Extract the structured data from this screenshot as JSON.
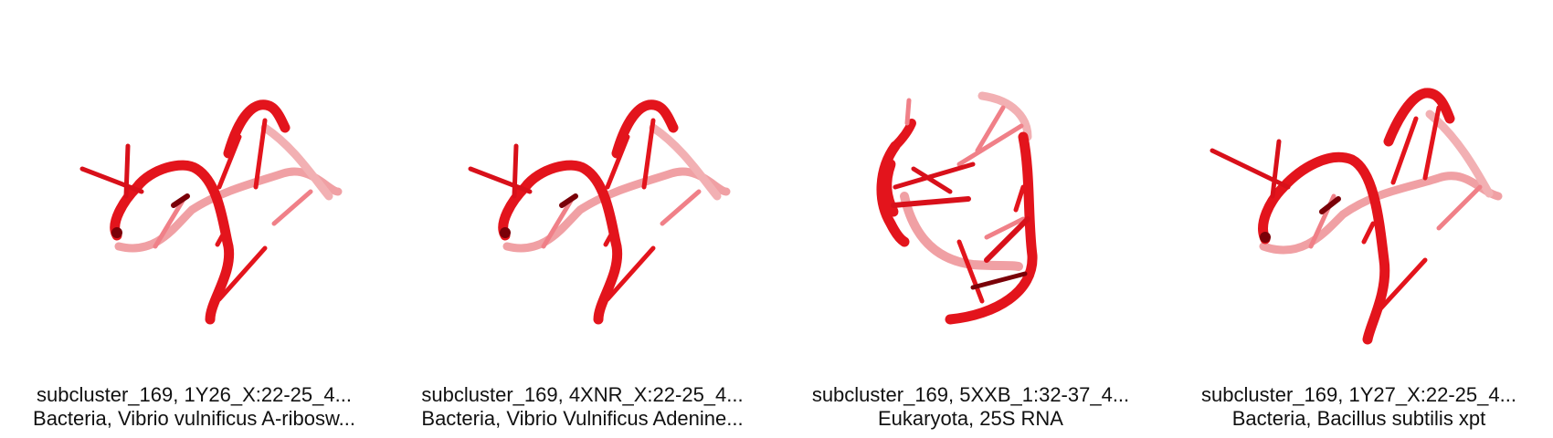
{
  "panels": [
    {
      "title": "subcluster_169, 1Y26_X:22-25_4...",
      "subtitle": "Bacteria, Vibrio vulnificus A-ribosw..."
    },
    {
      "title": "subcluster_169, 4XNR_X:22-25_4...",
      "subtitle": "Bacteria, Vibrio Vulnificus Adenine..."
    },
    {
      "title": "subcluster_169, 5XXB_1:32-37_4...",
      "subtitle": "Eukaryota, 25S RNA"
    },
    {
      "title": "subcluster_169, 1Y27_X:22-25_4...",
      "subtitle": "Bacteria, Bacillus subtilis xpt"
    }
  ],
  "colors": {
    "strand": "#e3141c",
    "strand_dark": "#a0080e",
    "strand_faded": "#f3a0a4"
  }
}
